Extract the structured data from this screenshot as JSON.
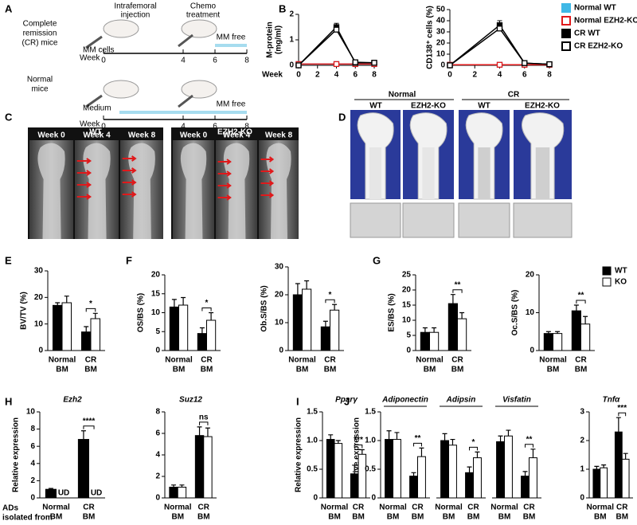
{
  "figure": {
    "panel_labels": [
      "A",
      "B",
      "C",
      "D",
      "E",
      "F",
      "G",
      "H",
      "I",
      "J"
    ],
    "schematic": {
      "injection": [
        "Intrafemoral",
        "injection"
      ],
      "chemo": [
        "Chemo",
        "treatment"
      ],
      "cr_mice": [
        "Complete",
        "remission",
        "(CR) mice"
      ],
      "mm_cells": "MM cells",
      "normal_mice": [
        "Normal",
        "mice"
      ],
      "medium": "Medium",
      "week": "Week",
      "week_ticks": [
        "0",
        "4",
        "6",
        "8"
      ],
      "mm_free": "MM free"
    },
    "xray": {
      "groups": [
        "WT",
        "EZH2-KO"
      ],
      "weeks": [
        "Week 0",
        "Week 4",
        "Week 8"
      ]
    },
    "microct": {
      "groups": [
        "Normal",
        "CR"
      ],
      "genotypes": [
        "WT",
        "EZH2-KO"
      ]
    },
    "row_caption": [
      "ADs",
      "isolated from"
    ]
  },
  "chart_data": [
    {
      "type": "line",
      "ylabel": [
        "M-protein",
        "(mg/ml)"
      ],
      "xlabel": "Week",
      "x": [
        0,
        4,
        6,
        8
      ],
      "xlim": [
        0,
        8
      ],
      "xticks": [
        0,
        2,
        4,
        6,
        8
      ],
      "ylim": [
        0,
        2
      ],
      "yticks": [
        0,
        1,
        2
      ],
      "series": [
        {
          "name": "Normal WT",
          "color": "#3fb8e6",
          "open": false,
          "values": [
            0.05,
            0.05,
            0.05,
            0.05
          ]
        },
        {
          "name": "Normal EZH2-KO",
          "color": "#e0191b",
          "open": true,
          "values": [
            0.05,
            0.05,
            0.05,
            0.05
          ]
        },
        {
          "name": "CR WT",
          "color": "#000000",
          "open": false,
          "values": [
            0,
            1.5,
            0.1,
            0.1
          ],
          "errors": [
            0,
            0.15,
            0.04,
            0.03
          ]
        },
        {
          "name": "CR EZH2-KO",
          "color": "#000000",
          "open": true,
          "values": [
            0,
            1.4,
            0.12,
            0.1
          ],
          "errors": [
            0,
            0.15,
            0.04,
            0.03
          ]
        }
      ]
    },
    {
      "type": "line",
      "ylabel": [
        "CD138⁺ cells (%)"
      ],
      "legend": "right",
      "x": [
        0,
        4,
        6,
        8
      ],
      "xlim": [
        0,
        8
      ],
      "xticks": [
        0,
        2,
        4,
        6,
        8
      ],
      "ylim": [
        0,
        50
      ],
      "yticks": [
        0,
        10,
        20,
        30,
        40,
        50
      ],
      "series": [
        {
          "name": "Normal WT",
          "color": "#3fb8e6",
          "open": false,
          "values": [
            0.5,
            0.5,
            0.5,
            0.5
          ]
        },
        {
          "name": "Normal EZH2-KO",
          "color": "#e0191b",
          "open": true,
          "values": [
            0.5,
            0.5,
            0.5,
            0.5
          ]
        },
        {
          "name": "CR WT",
          "color": "#000000",
          "open": false,
          "values": [
            0,
            36,
            2,
            1
          ],
          "errors": [
            0,
            4,
            1,
            0.5
          ]
        },
        {
          "name": "CR EZH2-KO",
          "color": "#000000",
          "open": true,
          "values": [
            0,
            33,
            2,
            1
          ],
          "errors": [
            0,
            4,
            1,
            0.5
          ]
        }
      ]
    },
    {
      "type": "bar",
      "ylabel": "BV/TV (%)",
      "categories": [
        [
          "Normal",
          "BM"
        ],
        [
          "CR",
          "BM"
        ]
      ],
      "ylim": [
        0,
        30
      ],
      "yticks": [
        0,
        10,
        20,
        30
      ],
      "significance": [
        null,
        "*"
      ],
      "significance_color": "#e0191b",
      "series": [
        {
          "name": "WT",
          "color": "#000000",
          "values": [
            17,
            7
          ],
          "errors": [
            1,
            2
          ]
        },
        {
          "name": "KO",
          "color": "#ffffff",
          "values": [
            18,
            12
          ],
          "errors": [
            2.5,
            2
          ]
        }
      ]
    },
    {
      "type": "bar",
      "ylabel": "OS/BS (%)",
      "categories": [
        [
          "Normal",
          "BM"
        ],
        [
          "CR",
          "BM"
        ]
      ],
      "ylim": [
        0,
        20
      ],
      "yticks": [
        0,
        5,
        10,
        15,
        20
      ],
      "significance": [
        null,
        "*"
      ],
      "significance_color": "#e0191b",
      "series": [
        {
          "name": "WT",
          "color": "#000000",
          "values": [
            11.5,
            4.5
          ],
          "errors": [
            2,
            1.5
          ]
        },
        {
          "name": "KO",
          "color": "#ffffff",
          "values": [
            12,
            8
          ],
          "errors": [
            2,
            2
          ]
        }
      ]
    },
    {
      "type": "bar",
      "ylabel": "Ob.S/BS (%)",
      "categories": [
        [
          "Normal",
          "BM"
        ],
        [
          "CR",
          "BM"
        ]
      ],
      "ylim": [
        0,
        30
      ],
      "yticks": [
        0,
        10,
        20,
        30
      ],
      "significance": [
        null,
        "*"
      ],
      "significance_color": "#e0191b",
      "series": [
        {
          "name": "WT",
          "color": "#000000",
          "values": [
            20,
            8.5
          ],
          "errors": [
            4,
            2
          ]
        },
        {
          "name": "KO",
          "color": "#ffffff",
          "values": [
            22,
            14.5
          ],
          "errors": [
            3,
            2
          ]
        }
      ]
    },
    {
      "type": "bar",
      "ylabel": "ES/BS (%)",
      "categories": [
        [
          "Normal",
          "BM"
        ],
        [
          "CR",
          "BM"
        ]
      ],
      "ylim": [
        0,
        25
      ],
      "yticks": [
        0,
        5,
        10,
        15,
        20,
        25
      ],
      "significance": [
        null,
        "**"
      ],
      "significance_color": "#e0191b",
      "series": [
        {
          "name": "WT",
          "color": "#000000",
          "values": [
            6,
            15.5
          ],
          "errors": [
            1.5,
            3
          ]
        },
        {
          "name": "KO",
          "color": "#ffffff",
          "values": [
            6,
            10.5
          ],
          "errors": [
            1.5,
            2
          ]
        }
      ]
    },
    {
      "type": "bar",
      "ylabel": "Oc.S/BS (%)",
      "legend": "right",
      "categories": [
        [
          "Normal",
          "BM"
        ],
        [
          "CR",
          "BM"
        ]
      ],
      "ylim": [
        0,
        20
      ],
      "yticks": [
        0,
        10,
        20
      ],
      "significance": [
        null,
        "**"
      ],
      "significance_color": "#e0191b",
      "series": [
        {
          "name": "WT",
          "color": "#000000",
          "values": [
            4.5,
            10.5
          ],
          "errors": [
            0.5,
            1.5
          ]
        },
        {
          "name": "KO",
          "color": "#ffffff",
          "values": [
            4.5,
            7
          ],
          "errors": [
            0.5,
            2
          ]
        }
      ]
    },
    {
      "type": "bar",
      "title": "Ezh2",
      "ylabel": "Relative expression",
      "categories": [
        [
          "Normal",
          "BM"
        ],
        [
          "CR",
          "BM"
        ]
      ],
      "ylim": [
        0,
        10
      ],
      "yticks": [
        0,
        2,
        4,
        6,
        8,
        10
      ],
      "significance": [
        null,
        "****"
      ],
      "significance_color": "#e0191b",
      "series": [
        {
          "name": "WT",
          "color": "#000000",
          "values": [
            1,
            6.8
          ],
          "errors": [
            0.1,
            1
          ]
        },
        {
          "name": "KO",
          "color": "#ffffff",
          "values": [
            null,
            null
          ],
          "value_labels": [
            "UD",
            "UD"
          ]
        }
      ]
    },
    {
      "type": "bar",
      "title": "Suz12",
      "categories": [
        [
          "Normal",
          "BM"
        ],
        [
          "CR",
          "BM"
        ]
      ],
      "ylim": [
        0,
        8
      ],
      "yticks": [
        0,
        2,
        4,
        6,
        8
      ],
      "significance": [
        null,
        "ns"
      ],
      "significance_color": "#000000",
      "series": [
        {
          "name": "WT",
          "color": "#000000",
          "values": [
            1,
            5.8
          ],
          "errors": [
            0.2,
            0.8
          ]
        },
        {
          "name": "KO",
          "color": "#ffffff",
          "values": [
            1,
            5.7
          ],
          "errors": [
            0.2,
            0.8
          ]
        }
      ]
    },
    {
      "type": "bar",
      "title": "Pparγ",
      "ylabel": "Relative expression",
      "categories": [
        [
          "Normal",
          "BM"
        ],
        [
          "CR",
          "BM"
        ]
      ],
      "ylim": [
        0,
        1.5
      ],
      "yticks": [
        0,
        0.5,
        {
          "value": 1,
          "label": "1.0"
        },
        1.5
      ],
      "significance": [
        null,
        "***"
      ],
      "significance_color": "#e0191b",
      "series": [
        {
          "name": "WT",
          "color": "#000000",
          "values": [
            1.02,
            0.42
          ],
          "errors": [
            0.08,
            0.15
          ]
        },
        {
          "name": "KO",
          "color": "#ffffff",
          "values": [
            0.95,
            0.76
          ],
          "errors": [
            0.05,
            0.08
          ]
        }
      ]
    },
    {
      "type": "bar",
      "title": "Adiponectin",
      "ylabel": "Relative expression",
      "categories": [
        [
          "Normal",
          "BM"
        ],
        [
          "CR",
          "BM"
        ]
      ],
      "ylim": [
        0,
        1.5
      ],
      "yticks": [
        0,
        0.5,
        {
          "value": 1,
          "label": "1.0"
        },
        1.5
      ],
      "significance": [
        null,
        "**"
      ],
      "significance_color": "#e0191b",
      "series": [
        {
          "name": "WT",
          "color": "#000000",
          "values": [
            1.02,
            0.38
          ],
          "errors": [
            0.15,
            0.06
          ]
        },
        {
          "name": "KO",
          "color": "#ffffff",
          "values": [
            1.02,
            0.72
          ],
          "errors": [
            0.12,
            0.15
          ]
        }
      ]
    },
    {
      "type": "bar",
      "title": "Adipsin",
      "categories": [
        [
          "Normal",
          "BM"
        ],
        [
          "CR",
          "BM"
        ]
      ],
      "ylim": [
        0,
        1.5
      ],
      "significance": [
        null,
        "*"
      ],
      "significance_color": "#e0191b",
      "series": [
        {
          "name": "WT",
          "color": "#000000",
          "values": [
            1.0,
            0.44
          ],
          "errors": [
            0.12,
            0.1
          ]
        },
        {
          "name": "KO",
          "color": "#ffffff",
          "values": [
            0.92,
            0.7
          ],
          "errors": [
            0.1,
            0.1
          ]
        }
      ]
    },
    {
      "type": "bar",
      "title": "Visfatin",
      "categories": [
        [
          "Normal",
          "BM"
        ],
        [
          "CR",
          "BM"
        ]
      ],
      "ylim": [
        0,
        1.5
      ],
      "significance": [
        null,
        "**"
      ],
      "significance_color": "#e0191b",
      "series": [
        {
          "name": "WT",
          "color": "#000000",
          "values": [
            0.98,
            0.38
          ],
          "errors": [
            0.1,
            0.08
          ]
        },
        {
          "name": "KO",
          "color": "#ffffff",
          "values": [
            1.08,
            0.7
          ],
          "errors": [
            0.1,
            0.15
          ]
        }
      ]
    },
    {
      "type": "bar",
      "title": "Tnfα",
      "categories": [
        [
          "Normal",
          "BM"
        ],
        [
          "CR",
          "BM"
        ]
      ],
      "ylim": [
        0,
        3
      ],
      "yticks": [
        0,
        1,
        2,
        3
      ],
      "significance": [
        null,
        "***"
      ],
      "significance_color": "#e0191b",
      "series": [
        {
          "name": "WT",
          "color": "#000000",
          "values": [
            1,
            2.3
          ],
          "errors": [
            0.1,
            0.5
          ]
        },
        {
          "name": "KO",
          "color": "#ffffff",
          "values": [
            1.05,
            1.35
          ],
          "errors": [
            0.1,
            0.2
          ]
        }
      ]
    }
  ]
}
